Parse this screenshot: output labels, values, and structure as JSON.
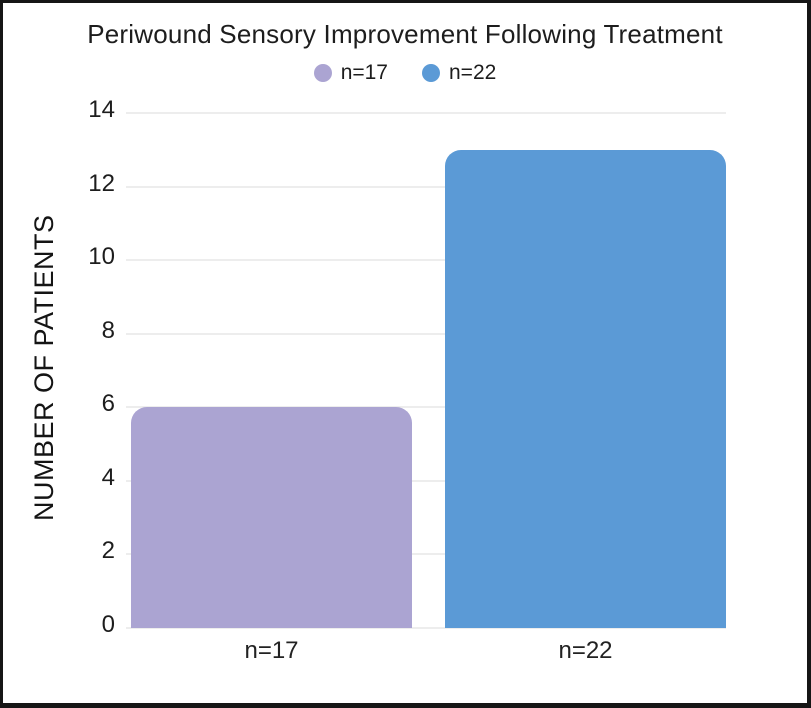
{
  "frame": {
    "background": "#ffffff",
    "border_color": "#161616"
  },
  "chart_data": {
    "type": "bar",
    "title": "Periwound Sensory Improvement Following Treatment",
    "xlabel": "",
    "ylabel": "NUMBER OF PATIENTS",
    "categories": [
      "n=17",
      "n=22"
    ],
    "values": [
      6,
      13
    ],
    "bar_colors": [
      "#aba4d2",
      "#5b9ad6"
    ],
    "ylim": [
      0,
      14
    ],
    "yticks": [
      0,
      2,
      4,
      6,
      8,
      10,
      12,
      14
    ],
    "grid": "horizontal",
    "gridline_color": "#ededed",
    "legend": {
      "position": "top",
      "entries": [
        {
          "label": "n=17",
          "color": "#aba4d2"
        },
        {
          "label": "n=22",
          "color": "#5b9ad6"
        }
      ]
    }
  }
}
